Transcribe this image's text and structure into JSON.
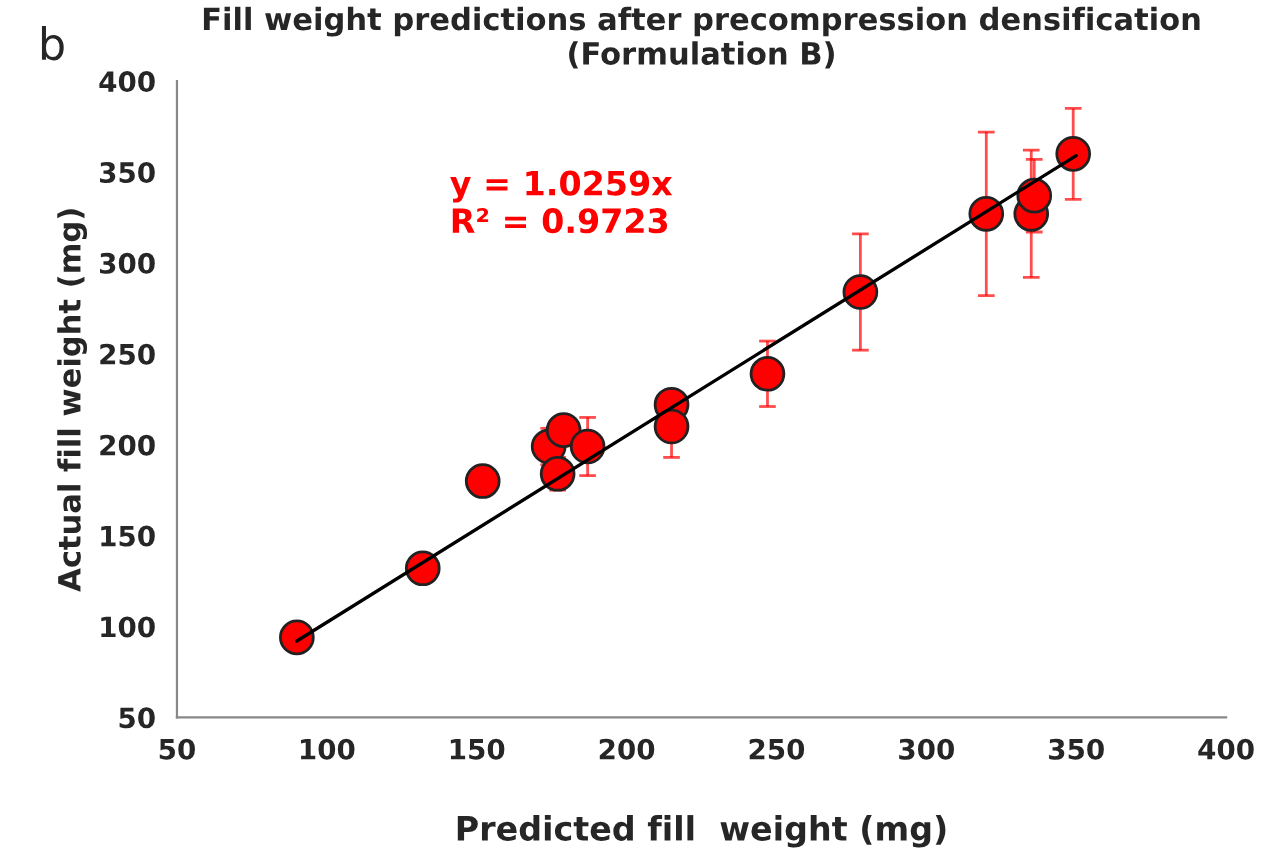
{
  "chart_data": {
    "type": "scatter",
    "title": "Fill weight predictions after precompression densification\n(Formulation B)",
    "xlabel": "Predicted fill  weight (mg)",
    "ylabel": "Actual fill weight (mg)",
    "annotations": [
      "b",
      "y = 1.0259x\nR² = 0.9723"
    ],
    "xlim": [
      50,
      400
    ],
    "ylim": [
      50,
      400
    ],
    "xticks": [
      50,
      100,
      150,
      200,
      250,
      300,
      350,
      400
    ],
    "yticks": [
      50,
      100,
      150,
      200,
      250,
      300,
      350,
      400
    ],
    "grid": false,
    "series": [
      {
        "type": "line",
        "color": "#000000",
        "x": [
          90,
          350
        ],
        "values": [
          92,
          359
        ],
        "marker": "none",
        "line_style": "solid"
      },
      {
        "type": "scatter",
        "color": "#ff0000",
        "marker": "circle",
        "x": [
          90,
          132,
          152,
          174,
          179,
          177,
          187,
          215,
          215,
          247,
          278,
          320,
          335,
          336,
          349
        ],
        "values": [
          94,
          132,
          180,
          199,
          208,
          184,
          199,
          222,
          210,
          239,
          284,
          327,
          327,
          337,
          360
        ],
        "errors": [
          3,
          7,
          8,
          10,
          5,
          9,
          16,
          6,
          17,
          18,
          32,
          45,
          35,
          20,
          25
        ]
      }
    ]
  }
}
